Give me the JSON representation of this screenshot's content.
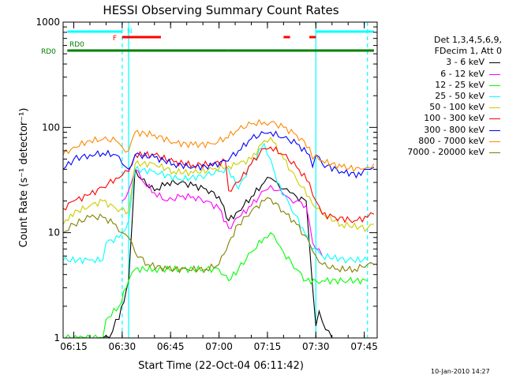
{
  "footer_date": "10-Jan-2010 14:27",
  "legend_header": [
    "Det 1,3,4,5,6,9,",
    "FDecim 1, Att 0"
  ],
  "chart_data": {
    "type": "line",
    "title": "HESSI Observing Summary Count Rates",
    "xlabel": "Start Time (22-Oct-04 06:11:42)",
    "ylabel": "Count Rate (s⁻¹ detector⁻¹)",
    "y_scale": "log",
    "ylim": [
      1,
      1000
    ],
    "y_ticks": [
      1,
      10,
      100,
      1000
    ],
    "y_tick_labels": [
      "1",
      "10",
      "100",
      "1000"
    ],
    "xlim": [
      "06:11:42",
      "07:49:00"
    ],
    "x_ticks": [
      "06:15",
      "06:30",
      "06:45",
      "07:00",
      "07:15",
      "07:30",
      "07:45"
    ],
    "dashed_cyan_lines": [
      "06:30",
      "07:46"
    ],
    "solid_cyan_lines": [
      "06:32",
      "07:30"
    ],
    "flags": [
      {
        "label": "N",
        "color": "#00ffff",
        "segments": [
          [
            "06:13",
            "06:30"
          ],
          [
            "07:30",
            "07:48"
          ]
        ]
      },
      {
        "label": "F",
        "color": "#ff0000",
        "segments": [
          [
            "06:30",
            "06:42"
          ],
          [
            "07:20",
            "07:22"
          ],
          [
            "07:28",
            "07:30"
          ]
        ]
      },
      {
        "label": "RD0",
        "color": "#008000",
        "segments": [
          [
            "06:13",
            "06:32"
          ],
          [
            "06:32",
            "07:03"
          ],
          [
            "07:03",
            "07:28"
          ],
          [
            "07:28",
            "07:48"
          ]
        ]
      }
    ],
    "series": [
      {
        "name": "3 - 6 keV",
        "color": "#000000",
        "x": [
          "06:24",
          "06:26",
          "06:28",
          "06:29",
          "06:32",
          "06:34",
          "06:36",
          "06:40",
          "06:44",
          "06:48",
          "06:52",
          "06:56",
          "07:00",
          "07:03",
          "07:06",
          "07:10",
          "07:14",
          "07:16",
          "07:18",
          "07:20",
          "07:22",
          "07:24",
          "07:27",
          "07:29",
          "07:30",
          "07:31",
          "07:33",
          "07:35"
        ],
        "y": [
          1,
          1,
          1.5,
          1.5,
          3.5,
          40,
          32,
          25,
          30,
          30,
          28,
          26,
          22,
          13,
          16,
          22,
          30,
          33,
          30,
          26,
          24,
          22,
          20,
          3,
          1.3,
          1.8,
          1.2,
          1
        ]
      },
      {
        "name": "6 - 12 keV",
        "color": "#ff00ff",
        "x": [
          "06:30",
          "06:32",
          "06:34",
          "06:36",
          "06:40",
          "06:44",
          "06:48",
          "06:52",
          "06:56",
          "07:00",
          "07:03",
          "07:06",
          "07:10",
          "07:14",
          "07:16",
          "07:18",
          "07:20",
          "07:22",
          "07:24",
          "07:27",
          "07:29",
          "07:31",
          "07:32"
        ],
        "y": [
          20,
          25,
          40,
          32,
          24,
          20,
          22,
          22,
          20,
          17,
          11,
          14,
          18,
          25,
          28,
          25,
          23,
          21,
          20,
          18,
          8,
          7,
          6
        ]
      },
      {
        "name": "12 - 25 keV",
        "color": "#00ff00",
        "x": [
          "06:11:42",
          "06:24",
          "06:25",
          "06:29",
          "06:32",
          "06:34",
          "06:40",
          "06:48",
          "06:56",
          "07:00",
          "07:03",
          "07:06",
          "07:10",
          "07:14",
          "07:16",
          "07:18",
          "07:20",
          "07:24",
          "07:27",
          "07:30",
          "07:32",
          "07:40",
          "07:46"
        ],
        "y": [
          1,
          1,
          1.5,
          2,
          3.5,
          4.5,
          4.5,
          4.5,
          4.5,
          4.5,
          3.5,
          4.5,
          6.5,
          9,
          10,
          8,
          6.5,
          4.5,
          3.5,
          3.5,
          3.5,
          3.5,
          3.5
        ]
      },
      {
        "name": "25 - 50 keV",
        "color": "#00ffff",
        "x": [
          "06:11:42",
          "06:20",
          "06:24",
          "06:25",
          "06:29",
          "06:30",
          "06:32",
          "06:34",
          "06:40",
          "06:48",
          "06:56",
          "07:00",
          "07:03",
          "07:06",
          "07:10",
          "07:14",
          "07:16",
          "07:18",
          "07:22",
          "07:26",
          "07:29",
          "07:31",
          "07:32",
          "07:40",
          "07:46"
        ],
        "y": [
          5.5,
          5.5,
          5.5,
          8,
          9,
          10,
          13,
          40,
          38,
          32,
          35,
          38,
          40,
          26,
          45,
          70,
          50,
          30,
          18,
          11,
          7,
          6.5,
          6,
          5.5,
          5.5
        ]
      },
      {
        "name": "50 - 100 keV",
        "color": "#cccc00",
        "x": [
          "06:11:42",
          "06:14",
          "06:20",
          "06:24",
          "06:28",
          "06:32",
          "06:34",
          "06:40",
          "06:46",
          "06:52",
          "06:58",
          "07:03",
          "07:06",
          "07:10",
          "07:14",
          "07:16",
          "07:20",
          "07:24",
          "07:28",
          "07:30",
          "07:32",
          "07:38",
          "07:46",
          "07:48"
        ],
        "y": [
          12,
          15,
          18,
          20,
          17,
          16,
          45,
          45,
          38,
          37,
          40,
          43,
          45,
          50,
          75,
          80,
          50,
          32,
          22,
          17,
          15,
          12,
          11,
          12
        ]
      },
      {
        "name": "100 - 300 keV",
        "color": "#ff0000",
        "x": [
          "06:11:42",
          "06:15",
          "06:20",
          "06:24",
          "06:28",
          "06:30",
          "06:32",
          "06:34",
          "06:40",
          "06:46",
          "06:52",
          "06:58",
          "07:02",
          "07:03",
          "07:06",
          "07:10",
          "07:14",
          "07:16",
          "07:20",
          "07:24",
          "07:28",
          "07:30",
          "07:32",
          "07:36",
          "07:42",
          "07:46",
          "07:48"
        ],
        "y": [
          17,
          20,
          23,
          27,
          33,
          35,
          38,
          55,
          55,
          47,
          44,
          45,
          48,
          25,
          30,
          45,
          63,
          65,
          55,
          42,
          30,
          20,
          15,
          14,
          13,
          14,
          15
        ]
      },
      {
        "name": "300 - 800 keV",
        "color": "#0000ff",
        "x": [
          "06:11:42",
          "06:15",
          "06:20",
          "06:24",
          "06:28",
          "06:30",
          "06:32",
          "06:34",
          "06:40",
          "06:46",
          "06:52",
          "06:58",
          "07:02",
          "07:06",
          "07:10",
          "07:14",
          "07:16",
          "07:20",
          "07:24",
          "07:28",
          "07:29",
          "07:30",
          "07:32",
          "07:38",
          "07:44",
          "07:46",
          "07:48"
        ],
        "y": [
          40,
          50,
          55,
          57,
          55,
          45,
          40,
          55,
          52,
          45,
          42,
          43,
          48,
          60,
          78,
          88,
          90,
          80,
          70,
          55,
          42,
          55,
          45,
          38,
          35,
          40,
          42
        ]
      },
      {
        "name": "800 - 7000 keV",
        "color": "#ff8800",
        "x": [
          "06:11:42",
          "06:15",
          "06:20",
          "06:24",
          "06:28",
          "06:30",
          "06:32",
          "06:34",
          "06:40",
          "06:46",
          "06:52",
          "06:58",
          "07:02",
          "07:06",
          "07:10",
          "07:14",
          "07:16",
          "07:20",
          "07:24",
          "07:28",
          "07:29",
          "07:30",
          "07:32",
          "07:38",
          "07:44",
          "07:46",
          "07:48"
        ],
        "y": [
          55,
          65,
          75,
          77,
          75,
          65,
          60,
          90,
          85,
          72,
          68,
          70,
          80,
          95,
          108,
          112,
          112,
          100,
          85,
          65,
          50,
          55,
          48,
          42,
          40,
          42,
          45
        ]
      },
      {
        "name": "7000 - 20000 keV",
        "color": "#808000",
        "x": [
          "06:11:42",
          "06:15",
          "06:20",
          "06:24",
          "06:28",
          "06:30",
          "06:32",
          "06:34",
          "06:38",
          "06:44",
          "06:50",
          "06:56",
          "07:00",
          "07:03",
          "07:06",
          "07:10",
          "07:14",
          "07:16",
          "07:20",
          "07:24",
          "07:28",
          "07:30",
          "07:32",
          "07:36",
          "07:42",
          "07:46",
          "07:48"
        ],
        "y": [
          10,
          12,
          14,
          14,
          12,
          10,
          9,
          6.5,
          5,
          4.5,
          4.5,
          4.5,
          5,
          8,
          12,
          16,
          20,
          21,
          16,
          12,
          8,
          6,
          5,
          4.5,
          4.5,
          5,
          5
        ]
      }
    ]
  }
}
